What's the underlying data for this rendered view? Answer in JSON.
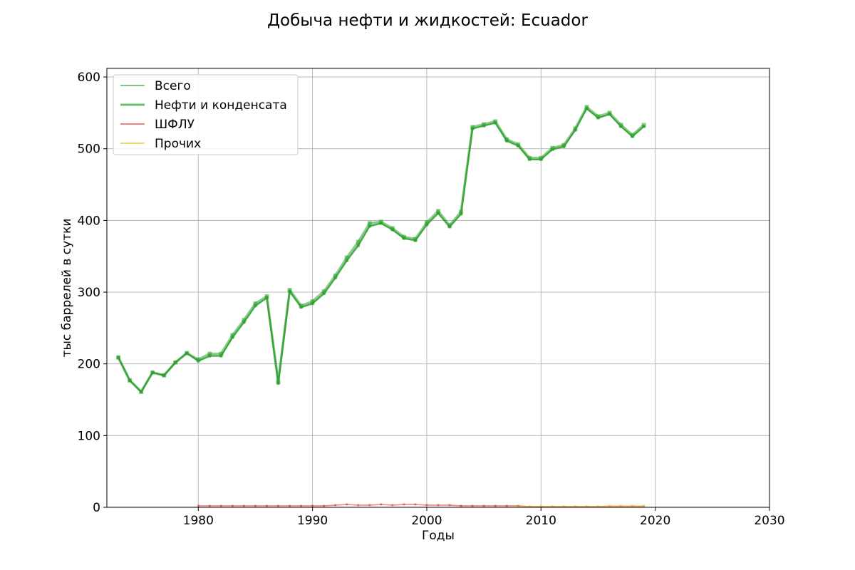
{
  "chart_data": {
    "type": "line",
    "title": "Добыча нефти и жидкостей: Ecuador",
    "xlabel": "Годы",
    "ylabel": "тыс баррелей в сутки",
    "xlim": [
      1972,
      2030
    ],
    "ylim": [
      0,
      612
    ],
    "xticks": [
      1980,
      1990,
      2000,
      2010,
      2020,
      2030
    ],
    "yticks": [
      0,
      100,
      200,
      300,
      400,
      500,
      600
    ],
    "grid": true,
    "legend_position": "top-left",
    "series": [
      {
        "name": "Всего",
        "color": "#2ca02c",
        "x": [
          1973,
          1974,
          1975,
          1976,
          1977,
          1978,
          1979,
          1980,
          1981,
          1982,
          1983,
          1984,
          1985,
          1986,
          1987,
          1988,
          1989,
          1990,
          1991,
          1992,
          1993,
          1994,
          1995,
          1996,
          1997,
          1998,
          1999,
          2000,
          2001,
          2002,
          2003,
          2004,
          2005,
          2006,
          2007,
          2008,
          2009,
          2010,
          2011,
          2012,
          2013,
          2014,
          2015,
          2016,
          2017,
          2018,
          2019
        ],
        "values": [
          209,
          177,
          161,
          188,
          184,
          202,
          215,
          206,
          214,
          214,
          240,
          261,
          284,
          294,
          175,
          303,
          281,
          287,
          301,
          323,
          348,
          370,
          396,
          398,
          389,
          377,
          374,
          397,
          413,
          393,
          412,
          530,
          534,
          538,
          513,
          506,
          487,
          487,
          501,
          505,
          528,
          558,
          545,
          550,
          533,
          519,
          533
        ]
      },
      {
        "name": "Нефти и конденсата",
        "color": "#2ca02c",
        "x": [
          1973,
          1974,
          1975,
          1976,
          1977,
          1978,
          1979,
          1980,
          1981,
          1982,
          1983,
          1984,
          1985,
          1986,
          1987,
          1988,
          1989,
          1990,
          1991,
          1992,
          1993,
          1994,
          1995,
          1996,
          1997,
          1998,
          1999,
          2000,
          2001,
          2002,
          2003,
          2004,
          2005,
          2006,
          2007,
          2008,
          2009,
          2010,
          2011,
          2012,
          2013,
          2014,
          2015,
          2016,
          2017,
          2018,
          2019
        ],
        "values": [
          209,
          177,
          161,
          188,
          184,
          202,
          215,
          204,
          211,
          211,
          237,
          258,
          281,
          292,
          173,
          301,
          279,
          284,
          298,
          320,
          344,
          365,
          392,
          396,
          387,
          375,
          372,
          394,
          410,
          391,
          409,
          528,
          532,
          536,
          511,
          504,
          485,
          485,
          499,
          503,
          526,
          556,
          543,
          548,
          531,
          517,
          531
        ]
      },
      {
        "name": "ШФЛУ",
        "color": "#e8302a",
        "x": [
          1980,
          1981,
          1982,
          1983,
          1984,
          1985,
          1986,
          1987,
          1988,
          1989,
          1990,
          1991,
          1992,
          1993,
          1994,
          1995,
          1996,
          1997,
          1998,
          1999,
          2000,
          2001,
          2002,
          2003,
          2004,
          2005,
          2006,
          2007,
          2008,
          2009,
          2010,
          2011,
          2012,
          2013,
          2014,
          2015,
          2016,
          2017,
          2018,
          2019
        ],
        "values": [
          2,
          2,
          2,
          2,
          2,
          2,
          2,
          2,
          2,
          2,
          2,
          2,
          3,
          4,
          3,
          3,
          4,
          3,
          4,
          4,
          3,
          3,
          3,
          2,
          2,
          2,
          2,
          2,
          2,
          1,
          1,
          1,
          1,
          1,
          1,
          1,
          1,
          1,
          1,
          1
        ]
      },
      {
        "name": "Прочих",
        "color": "#e0c21c",
        "x": [
          2008,
          2009,
          2010,
          2011,
          2012,
          2013,
          2014,
          2015,
          2016,
          2017,
          2018,
          2019
        ],
        "values": [
          1,
          1,
          1,
          1,
          1,
          1,
          1,
          1,
          2,
          2,
          2,
          2
        ]
      }
    ]
  }
}
